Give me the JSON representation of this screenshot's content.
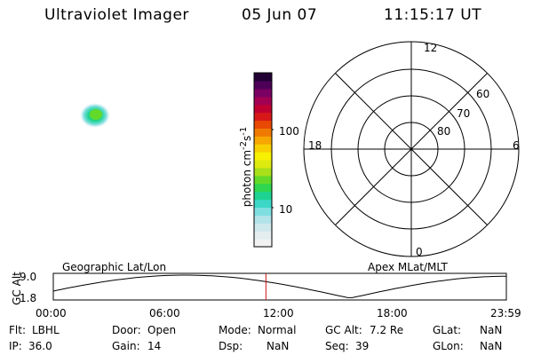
{
  "header": {
    "instrument": "Ultraviolet Imager",
    "date": "05 Jun 07",
    "time": "11:15:17 UT"
  },
  "colorbar": {
    "label_html": "photon cm<sup>-2</sup>s<sup>-1</sup>",
    "ticks": [
      "100",
      "10"
    ],
    "colors": [
      "#f2f2f2",
      "#e4eeee",
      "#cfe8ec",
      "#b2e2ea",
      "#7fdfe0",
      "#3cd7c6",
      "#1ed391",
      "#2fd650",
      "#63da2a",
      "#a8e01a",
      "#dcea10",
      "#f7f000",
      "#f8d000",
      "#f6a800",
      "#f07a00",
      "#e84800",
      "#d81818",
      "#c00030",
      "#a20052",
      "#7a0064",
      "#4e0058",
      "#220034"
    ]
  },
  "polar": {
    "mlt_labels": {
      "top": "12",
      "left": "18",
      "right": "6",
      "bottom": "0"
    },
    "lat_labels": [
      "60",
      "70",
      "80"
    ]
  },
  "timeline": {
    "ylabel": "GC Alt",
    "y_top": "9.0",
    "y_bottom": "1.8",
    "left_title": "Geographic Lat/Lon",
    "right_title": "Apex MLat/MLT",
    "x_ticks": [
      "00:00",
      "06:00",
      "12:00",
      "18:00",
      "23:59"
    ],
    "current_time": "11:15:17"
  },
  "info": {
    "filter_label": "Flt:",
    "filter_value": "LBHL",
    "door_label": "Door:",
    "door_value": "Open",
    "mode_label": "Mode:",
    "mode_value": "Normal",
    "gcalt_label": "GC Alt:",
    "gcalt_value": "7.2 Re",
    "glat_label": "GLat:",
    "glat_value": "NaN",
    "ip_label": "IP:",
    "ip_value": "36.0",
    "gain_label": "Gain:",
    "gain_value": "14",
    "dsp_label": "Dsp:",
    "dsp_value": "NaN",
    "seq_label": "Seq:",
    "seq_value": "39",
    "glon_label": "GLon:",
    "glon_value": "NaN"
  }
}
